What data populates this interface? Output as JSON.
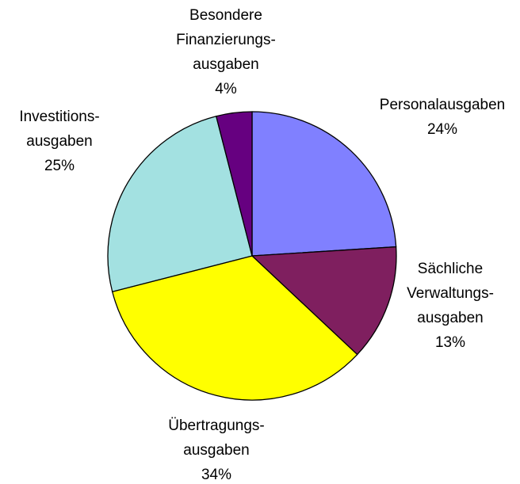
{
  "chart_data": {
    "type": "pie",
    "categories": [
      [
        "Personalausgaben"
      ],
      [
        "Sächliche",
        "Verwaltungs-",
        "ausgaben"
      ],
      [
        "Übertragungs-",
        "ausgaben"
      ],
      [
        "Investitions-",
        "ausgaben"
      ],
      [
        "Besondere",
        "Finanzierungs-",
        "ausgaben"
      ]
    ],
    "values": [
      24,
      13,
      34,
      25,
      4
    ],
    "value_labels": [
      "24%",
      "13%",
      "34%",
      "25%",
      "4%"
    ],
    "colors": [
      "#8080ff",
      "#7f1f5f",
      "#ffff00",
      "#a3e1e1",
      "#660080"
    ]
  }
}
